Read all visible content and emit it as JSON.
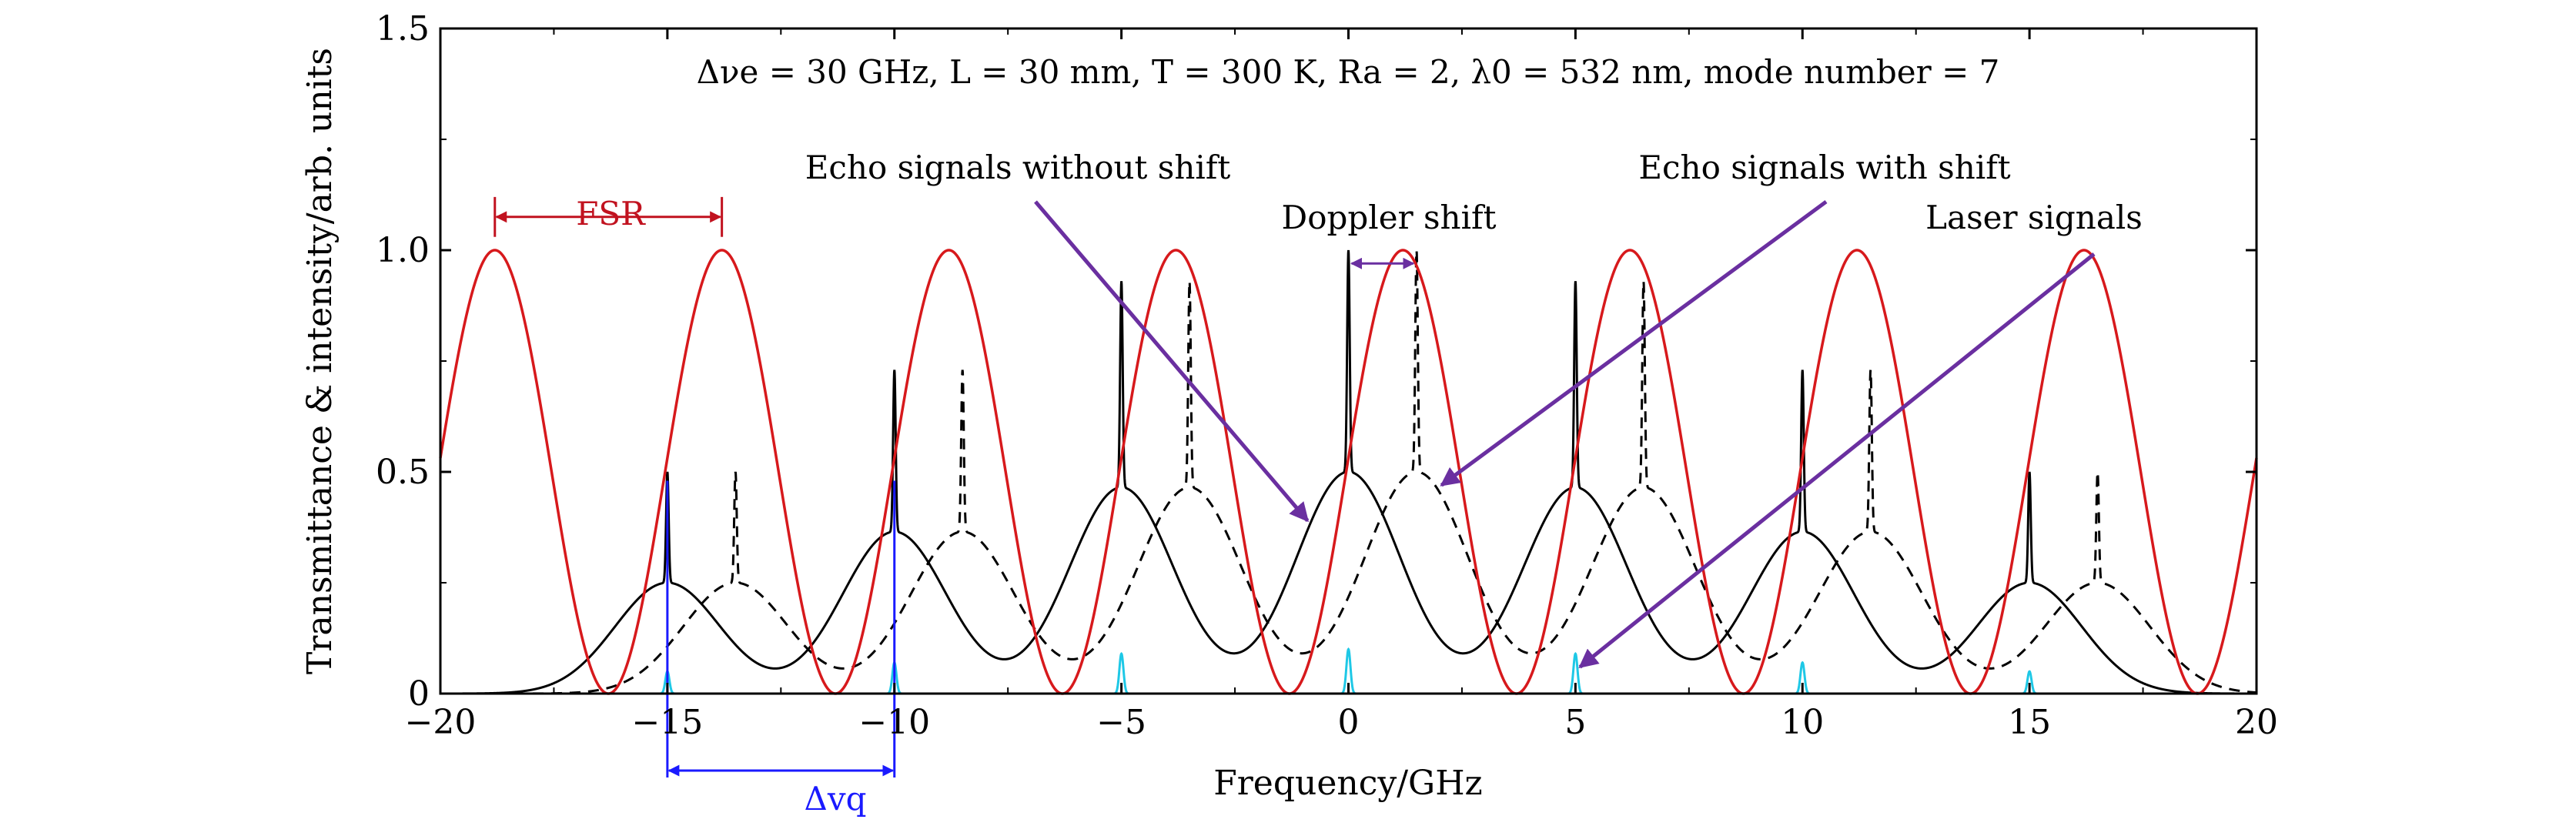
{
  "chart_data": {
    "type": "line",
    "title": "",
    "parameters_text": "Δνe = 30 GHz, L = 30 mm, T = 300 K, Ra = 2, λ0 = 532 nm, mode number = 7",
    "xlabel": "Frequency/GHz",
    "ylabel": "Transmittance & intensity/arb. units",
    "xlim": [
      -20,
      20
    ],
    "ylim": [
      0,
      1.5
    ],
    "x_ticks": [
      -20,
      -15,
      -10,
      -5,
      0,
      5,
      10,
      15,
      20
    ],
    "x_tick_labels": [
      "−20",
      "−15",
      "−10",
      "−5",
      "0",
      "5",
      "10",
      "15",
      "20"
    ],
    "y_ticks": [
      0,
      0.5,
      1.0,
      1.5
    ],
    "y_tick_labels": [
      "0",
      "0.5",
      "1.0",
      "1.5"
    ],
    "grid": false,
    "fsr_ghz": 5.0,
    "mode_spacing_ghz": 5.0,
    "doppler_shift_ghz": 1.5,
    "transmission_peaks_x": [
      -18.8,
      -13.8,
      -8.8,
      -3.8,
      1.2,
      6.2,
      11.2,
      16.2
    ],
    "modes": [
      {
        "x": -15,
        "echo_peak": 0.5,
        "laser_peak": 0.05
      },
      {
        "x": -10,
        "echo_peak": 0.73,
        "laser_peak": 0.07
      },
      {
        "x": -5,
        "echo_peak": 0.93,
        "laser_peak": 0.09
      },
      {
        "x": 0,
        "echo_peak": 1.0,
        "laser_peak": 0.1
      },
      {
        "x": 5,
        "echo_peak": 0.93,
        "laser_peak": 0.09
      },
      {
        "x": 10,
        "echo_peak": 0.73,
        "laser_peak": 0.07
      },
      {
        "x": 15,
        "echo_peak": 0.5,
        "laser_peak": 0.05
      }
    ],
    "series": [
      {
        "color": "#d7191c",
        "style": "solid"
      },
      {
        "color": "#000000",
        "style": "solid"
      },
      {
        "color": "#000000",
        "style": "dashed"
      },
      {
        "color": "#1ec8e6",
        "style": "solid"
      }
    ],
    "annotations": {
      "fsr": "FSR",
      "delta_vq": "Δvq",
      "echo_without_shift": "Echo signals without shift",
      "echo_with_shift": "Echo signals with shift",
      "doppler_shift": "Doppler shift",
      "laser_signals": "Laser signals"
    },
    "colors": {
      "fsr": "#c1121f",
      "delta_vq": "#1a1aff",
      "arrow": "#6a2fa0"
    }
  }
}
